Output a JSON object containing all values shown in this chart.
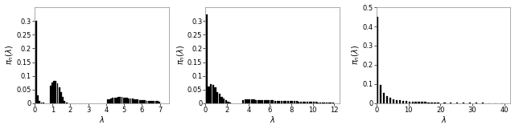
{
  "plot1": {
    "xlim": [
      0,
      7.5
    ],
    "ylim": [
      0,
      0.35
    ],
    "yticks": [
      0,
      0.05,
      0.1,
      0.15,
      0.2,
      0.25,
      0.3
    ],
    "xticks": [
      0,
      1,
      2,
      3,
      4,
      5,
      6,
      7
    ],
    "bar_positions": [
      0.08,
      0.18,
      0.28,
      0.38,
      0.48,
      0.88,
      0.98,
      1.08,
      1.18,
      1.28,
      1.38,
      1.48,
      1.58,
      1.68,
      1.78,
      4.08,
      4.18,
      4.28,
      4.38,
      4.48,
      4.58,
      4.68,
      4.78,
      4.88,
      4.98,
      5.08,
      5.18,
      5.28,
      5.38,
      5.48,
      5.58,
      5.68,
      5.78,
      5.88,
      5.98,
      6.08,
      6.18,
      6.28,
      6.38,
      6.48,
      6.58,
      6.68,
      6.78,
      6.88,
      6.98
    ],
    "bar_heights": [
      0.3,
      0.03,
      0.008,
      0.004,
      0.002,
      0.065,
      0.075,
      0.082,
      0.08,
      0.072,
      0.058,
      0.042,
      0.022,
      0.008,
      0.003,
      0.013,
      0.015,
      0.017,
      0.019,
      0.02,
      0.021,
      0.022,
      0.022,
      0.022,
      0.021,
      0.02,
      0.019,
      0.018,
      0.017,
      0.016,
      0.015,
      0.014,
      0.013,
      0.012,
      0.011,
      0.01,
      0.01,
      0.009,
      0.009,
      0.008,
      0.008,
      0.007,
      0.007,
      0.007,
      0.006
    ],
    "bar_width": 0.085
  },
  "plot2": {
    "xlim": [
      0,
      12.5
    ],
    "ylim": [
      0,
      0.35
    ],
    "yticks": [
      0,
      0.05,
      0.1,
      0.15,
      0.2,
      0.25,
      0.3
    ],
    "xticks": [
      0,
      2,
      4,
      6,
      8,
      10,
      12
    ],
    "bar_positions": [
      0.1,
      0.3,
      0.5,
      0.7,
      0.9,
      1.1,
      1.3,
      1.5,
      1.7,
      1.9,
      2.1,
      2.3,
      3.5,
      3.7,
      3.9,
      4.1,
      4.3,
      4.5,
      4.7,
      4.9,
      5.1,
      5.3,
      5.5,
      5.7,
      5.9,
      6.1,
      6.3,
      6.5,
      6.7,
      6.9,
      7.1,
      7.3,
      7.5,
      7.7,
      7.9,
      8.1,
      8.3,
      8.5,
      8.7,
      8.9,
      9.1,
      9.3,
      9.5,
      9.7,
      9.9,
      10.1,
      10.3,
      10.5,
      10.7,
      10.9,
      11.1,
      11.3,
      11.5,
      11.7,
      11.9
    ],
    "bar_heights": [
      0.325,
      0.06,
      0.07,
      0.068,
      0.058,
      0.042,
      0.034,
      0.024,
      0.016,
      0.01,
      0.006,
      0.003,
      0.012,
      0.013,
      0.014,
      0.014,
      0.013,
      0.013,
      0.012,
      0.012,
      0.012,
      0.011,
      0.011,
      0.011,
      0.01,
      0.01,
      0.01,
      0.009,
      0.009,
      0.009,
      0.008,
      0.008,
      0.008,
      0.008,
      0.007,
      0.007,
      0.007,
      0.007,
      0.006,
      0.006,
      0.006,
      0.006,
      0.005,
      0.005,
      0.005,
      0.005,
      0.005,
      0.004,
      0.004,
      0.004,
      0.004,
      0.004,
      0.003,
      0.003,
      0.003
    ],
    "bar_width": 0.16
  },
  "plot3": {
    "xlim": [
      0,
      42
    ],
    "ylim": [
      0,
      0.5
    ],
    "yticks": [
      0,
      0.1,
      0.2,
      0.3,
      0.4,
      0.5
    ],
    "xticks": [
      0,
      10,
      20,
      30,
      40
    ],
    "bar_positions": [
      0.3,
      1.3,
      2.3,
      3.3,
      4.3,
      5.3,
      6.3,
      7.3,
      8.3,
      9.3,
      10.3,
      11.3,
      12.3,
      13.3,
      14.3,
      15.3,
      16.3,
      17.3,
      18.3,
      19.3,
      21.3,
      23.3,
      25.3,
      27.3,
      29.3,
      31.3,
      33.3,
      35.3,
      37.3,
      39.3
    ],
    "bar_heights": [
      0.45,
      0.095,
      0.055,
      0.038,
      0.028,
      0.022,
      0.018,
      0.015,
      0.013,
      0.011,
      0.009,
      0.008,
      0.007,
      0.007,
      0.006,
      0.006,
      0.005,
      0.005,
      0.004,
      0.004,
      0.003,
      0.003,
      0.003,
      0.003,
      0.002,
      0.002,
      0.002,
      0.001,
      0.001,
      0.001
    ],
    "bar_width": 0.6
  },
  "bar_color": "#000000",
  "bg_color": "#ffffff",
  "font_size": 7,
  "tick_font_size": 6
}
